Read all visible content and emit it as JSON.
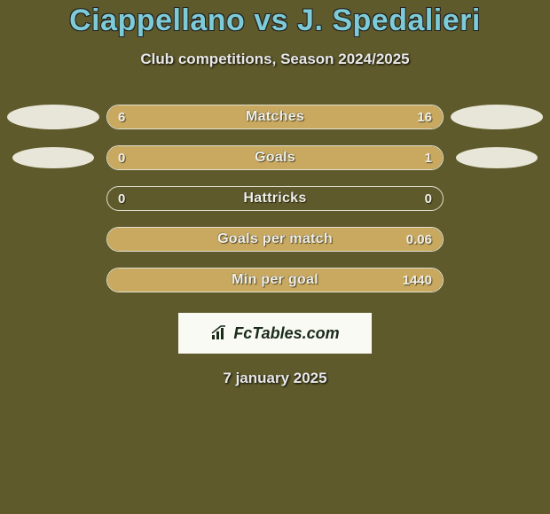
{
  "title": "Ciappellano vs J. Spedalieri",
  "subtitle": "Club competitions, Season 2024/2025",
  "date": "7 january 2025",
  "logo_text": "FcTables.com",
  "colors": {
    "background": "#5f5a2b",
    "title_color": "#7ecbd8",
    "bar_fill": "#c9a95f",
    "bar_border": "#e0e0d0",
    "text_light": "#f0f0e8",
    "ellipse_fill": "#e8e6d8",
    "logo_bg": "#fafaf5",
    "logo_text_color": "#1a2b1a"
  },
  "rows": [
    {
      "label": "Matches",
      "left_value": "6",
      "right_value": "16",
      "left_pct": 27,
      "right_pct": 73,
      "show_left_ellipse": "large",
      "show_right_ellipse": "large"
    },
    {
      "label": "Goals",
      "left_value": "0",
      "right_value": "1",
      "left_pct": 0,
      "right_pct": 100,
      "show_left_ellipse": "small",
      "show_right_ellipse": "small"
    },
    {
      "label": "Hattricks",
      "left_value": "0",
      "right_value": "0",
      "left_pct": 0,
      "right_pct": 0,
      "show_left_ellipse": "none",
      "show_right_ellipse": "none"
    },
    {
      "label": "Goals per match",
      "left_value": "",
      "right_value": "0.06",
      "left_pct": 0,
      "right_pct": 100,
      "show_left_ellipse": "none",
      "show_right_ellipse": "none"
    },
    {
      "label": "Min per goal",
      "left_value": "",
      "right_value": "1440",
      "left_pct": 0,
      "right_pct": 100,
      "show_left_ellipse": "none",
      "show_right_ellipse": "none"
    }
  ]
}
